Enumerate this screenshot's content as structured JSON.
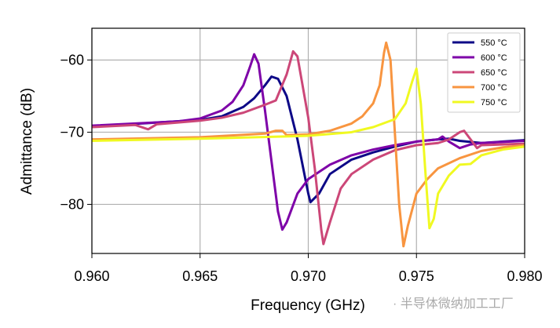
{
  "chart_data": {
    "type": "line",
    "xlabel": "Frequency (GHz)",
    "ylabel": "Admittance (dB)",
    "xlim": [
      0.96,
      0.98
    ],
    "ylim": [
      -86.8,
      -55.6
    ],
    "xticks": [
      {
        "value": 0.96,
        "label": "0.960"
      },
      {
        "value": 0.965,
        "label": "0.965"
      },
      {
        "value": 0.97,
        "label": "0.970"
      },
      {
        "value": 0.975,
        "label": "0.975"
      },
      {
        "value": 0.98,
        "label": "0.980"
      }
    ],
    "yticks": [
      {
        "value": -80,
        "label": "−80"
      },
      {
        "value": -70,
        "label": "−70"
      },
      {
        "value": -60,
        "label": "−60"
      }
    ],
    "grid": true,
    "legend": "upper right",
    "watermark": "· 半导体微纳加工工厂",
    "series": [
      {
        "name": "550 °C",
        "color": "#0d0887",
        "x": [
          0.96,
          0.965,
          0.966,
          0.967,
          0.9675,
          0.968,
          0.9683,
          0.9686,
          0.969,
          0.9695,
          0.97,
          0.9701,
          0.9705,
          0.971,
          0.972,
          0.973,
          0.974,
          0.975,
          0.976,
          0.9765,
          0.977,
          0.978,
          0.979,
          0.98
        ],
        "values": [
          -69.2,
          -68.3,
          -67.8,
          -66.5,
          -65.3,
          -63.5,
          -62.3,
          -62.6,
          -65,
          -71,
          -78.5,
          -79.7,
          -78.5,
          -75.8,
          -73.8,
          -72.8,
          -72,
          -71.3,
          -71,
          -70.9,
          -71.2,
          -71.5,
          -71.3,
          -71.1
        ]
      },
      {
        "name": "600 °C",
        "color": "#7e03a8",
        "x": [
          0.96,
          0.964,
          0.965,
          0.966,
          0.9665,
          0.967,
          0.9673,
          0.9675,
          0.9677,
          0.968,
          0.9683,
          0.9686,
          0.9688,
          0.969,
          0.9695,
          0.97,
          0.971,
          0.972,
          0.973,
          0.974,
          0.975,
          0.976,
          0.9762,
          0.9765,
          0.977,
          0.9775,
          0.978,
          0.98
        ],
        "values": [
          -69.1,
          -68.5,
          -68.1,
          -67,
          -65.8,
          -63.5,
          -61,
          -59.2,
          -60.5,
          -67,
          -74,
          -81,
          -83.5,
          -82.5,
          -78.5,
          -76.5,
          -74.5,
          -73.2,
          -72.4,
          -71.8,
          -71.3,
          -71,
          -70.6,
          -71.3,
          -72.2,
          -71.7,
          -71.5,
          -71.2
        ]
      },
      {
        "name": "650 °C",
        "color": "#cc4778",
        "x": [
          0.96,
          0.962,
          0.9626,
          0.963,
          0.965,
          0.966,
          0.967,
          0.968,
          0.9685,
          0.969,
          0.9693,
          0.9695,
          0.97,
          0.9703,
          0.9706,
          0.9707,
          0.971,
          0.9715,
          0.972,
          0.973,
          0.974,
          0.975,
          0.976,
          0.9765,
          0.977,
          0.9772,
          0.9775,
          0.9778,
          0.978,
          0.98
        ],
        "values": [
          -69.3,
          -69,
          -69.6,
          -68.9,
          -68.4,
          -68,
          -67.3,
          -66.2,
          -65.6,
          -62,
          -58.8,
          -59.5,
          -68,
          -75,
          -83.5,
          -85.5,
          -82.5,
          -77.8,
          -75.8,
          -73.8,
          -72.5,
          -71.8,
          -71.5,
          -71,
          -70,
          -69.8,
          -71,
          -72.2,
          -71.8,
          -71.6
        ]
      },
      {
        "name": "700 °C",
        "color": "#f89540",
        "x": [
          0.96,
          0.965,
          0.968,
          0.9685,
          0.9688,
          0.969,
          0.97,
          0.971,
          0.972,
          0.9725,
          0.973,
          0.9733,
          0.9735,
          0.9736,
          0.9738,
          0.974,
          0.9742,
          0.9744,
          0.9746,
          0.975,
          0.9755,
          0.976,
          0.977,
          0.978,
          0.979,
          0.98
        ],
        "values": [
          -71,
          -70.7,
          -70.2,
          -69.8,
          -69.8,
          -70.4,
          -70.3,
          -69.8,
          -68.8,
          -67.8,
          -66,
          -63.5,
          -59,
          -57.6,
          -60,
          -70,
          -80,
          -85.8,
          -83,
          -78.5,
          -76.5,
          -75,
          -73.6,
          -72.6,
          -72.1,
          -71.8
        ]
      },
      {
        "name": "750 °C",
        "color": "#f0f921",
        "x": [
          0.96,
          0.965,
          0.97,
          0.972,
          0.973,
          0.974,
          0.9745,
          0.9748,
          0.975,
          0.9752,
          0.9754,
          0.9756,
          0.9758,
          0.976,
          0.9765,
          0.977,
          0.9775,
          0.978,
          0.979,
          0.98
        ],
        "values": [
          -71.2,
          -70.9,
          -70.5,
          -70,
          -69.3,
          -68.2,
          -66,
          -63,
          -61.2,
          -66,
          -75,
          -83.3,
          -82,
          -78.5,
          -76,
          -74.5,
          -74.4,
          -73.2,
          -72.4,
          -72
        ]
      }
    ]
  }
}
